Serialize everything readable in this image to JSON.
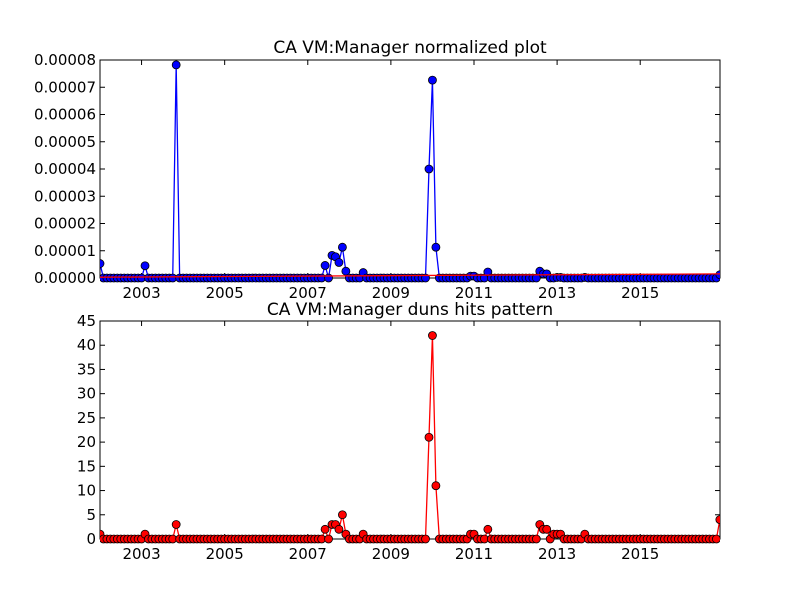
{
  "chart_data": [
    {
      "type": "line",
      "title": "CA VM:Manager normalized plot",
      "xlabel": "",
      "ylabel": "",
      "xlim": [
        2002.0,
        2016.92
      ],
      "ylim": [
        0,
        8e-05
      ],
      "x_ticks": [
        "2003",
        "2005",
        "2007",
        "2009",
        "2011",
        "2013",
        "2015"
      ],
      "x_tick_values": [
        2003,
        2005,
        2007,
        2009,
        2011,
        2013,
        2015
      ],
      "y_ticks": [
        "0.00000",
        "0.00001",
        "0.00002",
        "0.00003",
        "0.00004",
        "0.00005",
        "0.00006",
        "0.00007",
        "0.00008"
      ],
      "y_tick_values": [
        0,
        1e-05,
        2e-05,
        3e-05,
        4e-05,
        5e-05,
        6e-05,
        7e-05,
        8e-05
      ],
      "grid": false,
      "series": [
        {
          "color": "#0000ff",
          "marker": "circle",
          "x_start": 2002.0,
          "step_months": 1,
          "nonzero": [
            [
              0,
              5.3e-06
            ],
            [
              13,
              4.5e-06
            ],
            [
              22,
              7.82e-05
            ],
            [
              65,
              4.6e-06
            ],
            [
              67,
              8.3e-06
            ],
            [
              68,
              7.8e-06
            ],
            [
              69,
              5.7e-06
            ],
            [
              70,
              1.13e-05
            ],
            [
              71,
              2.5e-06
            ],
            [
              76,
              2e-06
            ],
            [
              95,
              4e-05
            ],
            [
              96,
              7.26e-05
            ],
            [
              97,
              1.13e-05
            ],
            [
              107,
              7e-07
            ],
            [
              108,
              7e-07
            ],
            [
              112,
              2.2e-06
            ],
            [
              127,
              2.5e-06
            ],
            [
              128,
              1.5e-06
            ],
            [
              129,
              1.5e-06
            ],
            [
              132,
              2e-07
            ],
            [
              133,
              2e-07
            ],
            [
              140,
              2e-07
            ],
            [
              179,
              1.2e-06
            ]
          ],
          "count": 180
        },
        {
          "color": "#ff0000",
          "marker": "none",
          "x": [
            2002.0,
            2016.92
          ],
          "y": [
            3e-07,
            1.5e-06
          ]
        }
      ]
    },
    {
      "type": "line",
      "title": "CA VM:Manager duns hits pattern",
      "xlabel": "",
      "ylabel": "",
      "xlim": [
        2002.0,
        2016.92
      ],
      "ylim": [
        0,
        45
      ],
      "x_ticks": [
        "2003",
        "2005",
        "2007",
        "2009",
        "2011",
        "2013",
        "2015"
      ],
      "x_tick_values": [
        2003,
        2005,
        2007,
        2009,
        2011,
        2013,
        2015
      ],
      "y_ticks": [
        "0",
        "5",
        "10",
        "15",
        "20",
        "25",
        "30",
        "35",
        "40",
        "45"
      ],
      "y_tick_values": [
        0,
        5,
        10,
        15,
        20,
        25,
        30,
        35,
        40,
        45
      ],
      "grid": false,
      "series": [
        {
          "color": "#ff0000",
          "marker": "circle",
          "x_start": 2002.0,
          "step_months": 1,
          "nonzero": [
            [
              0,
              1
            ],
            [
              13,
              1
            ],
            [
              22,
              3
            ],
            [
              65,
              2
            ],
            [
              67,
              3
            ],
            [
              68,
              3
            ],
            [
              69,
              2
            ],
            [
              70,
              5
            ],
            [
              71,
              1
            ],
            [
              76,
              1
            ],
            [
              95,
              21
            ],
            [
              96,
              42
            ],
            [
              97,
              11
            ],
            [
              107,
              1
            ],
            [
              108,
              1
            ],
            [
              112,
              2
            ],
            [
              127,
              3
            ],
            [
              128,
              2
            ],
            [
              129,
              2
            ],
            [
              131,
              1
            ],
            [
              132,
              1
            ],
            [
              133,
              1
            ],
            [
              140,
              1
            ],
            [
              179,
              4
            ]
          ],
          "count": 180
        }
      ]
    }
  ]
}
